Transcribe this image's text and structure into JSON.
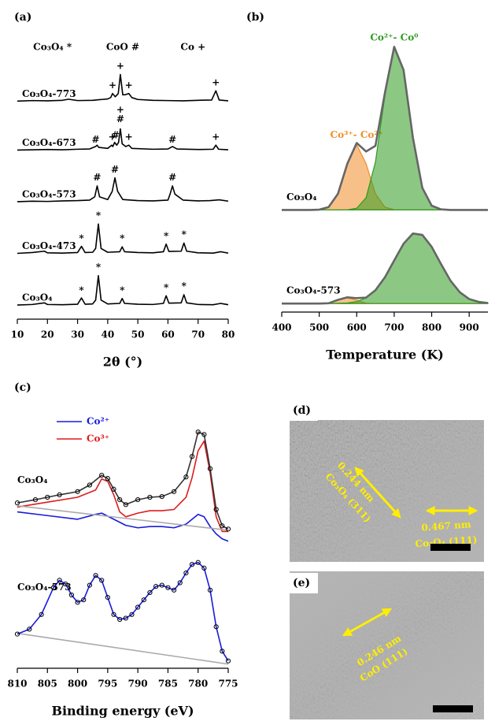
{
  "chart_data": [
    {
      "type": "line",
      "panel": "(a)",
      "xlabel": "2θ (°)",
      "xlim": [
        10,
        80
      ],
      "xticks": [
        10,
        20,
        30,
        40,
        50,
        60,
        70,
        80
      ],
      "ylim": [
        0,
        100
      ],
      "key": [
        "Co₃O₄  *",
        "CoO  #",
        "Co  +"
      ],
      "series": [
        {
          "name": "Co₃O₄-773",
          "color": "#000000",
          "x": [
            10,
            15,
            20,
            25,
            27,
            30,
            35,
            38,
            40,
            41,
            41.6,
            42.5,
            43.5,
            44.2,
            45,
            46,
            47,
            48,
            50,
            55,
            60,
            65,
            70,
            74.5,
            75.9,
            77,
            80
          ],
          "values": [
            80.2,
            80.4,
            80.3,
            80.5,
            80.9,
            80.4,
            80.5,
            80.8,
            81,
            81.5,
            83,
            81.8,
            83,
            90,
            82.5,
            82.6,
            83,
            81.5,
            80.8,
            80.5,
            80.4,
            80.3,
            80.5,
            80.6,
            84,
            80.6,
            80.3
          ]
        },
        {
          "name": "Co₃O₄-673",
          "color": "#000000",
          "x": [
            10,
            15,
            20,
            25,
            30,
            34,
            36,
            36.5,
            37,
            40,
            41.3,
            41.7,
            42.3,
            43,
            43.6,
            44.2,
            44.8,
            46,
            47,
            48,
            55,
            60,
            61.5,
            63,
            70,
            75,
            75.9,
            76.8,
            80
          ],
          "values": [
            62.2,
            62.3,
            62.4,
            62.3,
            62.5,
            62.6,
            63.5,
            64,
            63.2,
            62.8,
            64,
            63.5,
            65,
            64,
            65,
            70,
            64.5,
            63.5,
            64,
            62.8,
            62.5,
            62.6,
            63.5,
            62.6,
            62.4,
            62.5,
            64,
            62.5,
            62.3
          ]
        },
        {
          "name": "Co₃O₄-573",
          "color": "#000000",
          "x": [
            10,
            15,
            20,
            25,
            30,
            34,
            35.7,
            36.5,
            37.3,
            40,
            41.5,
            42.4,
            43.3,
            45,
            50,
            55,
            60,
            60.7,
            61.5,
            62.3,
            65,
            70,
            74,
            77,
            80
          ],
          "values": [
            43.2,
            43.4,
            43.3,
            43.5,
            43.6,
            43.8,
            45,
            49,
            45,
            44,
            47,
            52,
            47,
            44,
            43.6,
            43.5,
            43.8,
            46,
            49,
            46,
            43.8,
            43.5,
            43.6,
            43.9,
            43.4
          ]
        },
        {
          "name": "Co₃O₄-473",
          "color": "#000000",
          "x": [
            10,
            15,
            19,
            20,
            25,
            30,
            31.3,
            32.5,
            35,
            36,
            36.9,
            37.8,
            40,
            44,
            44.8,
            45.6,
            50,
            55,
            58.5,
            59.4,
            60.3,
            64.4,
            65.3,
            66.2,
            70,
            75,
            77.5,
            78.5,
            80
          ],
          "values": [
            24.2,
            24.5,
            25,
            24.4,
            24.3,
            24.5,
            26.8,
            24.5,
            24.6,
            26,
            35,
            26,
            24.6,
            24.8,
            26.6,
            24.8,
            24.5,
            24.4,
            24.8,
            27.6,
            24.9,
            25,
            28,
            25,
            24.4,
            24.3,
            24.8,
            24.6,
            24.3
          ]
        },
        {
          "name": "Co₃O₄",
          "color": "#000000",
          "x": [
            10,
            15,
            19,
            20,
            25,
            30,
            31.3,
            32.5,
            35,
            36,
            36.9,
            37.8,
            40,
            44,
            44.8,
            45.6,
            50,
            55,
            58.5,
            59.4,
            60.3,
            64.4,
            65.3,
            66.2,
            70,
            75,
            77.5,
            78.5,
            80
          ],
          "values": [
            5.2,
            5.4,
            6,
            5.4,
            5.3,
            5.5,
            7.8,
            5.5,
            5.6,
            7,
            16,
            7,
            5.6,
            5.8,
            7.6,
            5.8,
            5.5,
            5.4,
            5.8,
            8.6,
            5.9,
            6,
            9,
            6,
            5.4,
            5.3,
            5.8,
            5.6,
            5.3
          ]
        }
      ],
      "markers": [
        {
          "x": 41.6,
          "y": 86,
          "label": "+"
        },
        {
          "x": 44.2,
          "y": 93,
          "label": "+"
        },
        {
          "x": 47,
          "y": 86,
          "label": "+"
        },
        {
          "x": 75.9,
          "y": 87,
          "label": "+"
        },
        {
          "x": 36,
          "y": 66,
          "label": "#"
        },
        {
          "x": 41.5,
          "y": 67,
          "label": "+"
        },
        {
          "x": 42.6,
          "y": 67.5,
          "label": "#"
        },
        {
          "x": 44.2,
          "y": 73.5,
          "label": "#"
        },
        {
          "x": 44.2,
          "y": 77,
          "label": "+"
        },
        {
          "x": 47,
          "y": 67,
          "label": "+"
        },
        {
          "x": 61.5,
          "y": 66,
          "label": "#"
        },
        {
          "x": 75.9,
          "y": 67,
          "label": "+"
        },
        {
          "x": 36.5,
          "y": 52,
          "label": "#"
        },
        {
          "x": 42.4,
          "y": 55,
          "label": "#"
        },
        {
          "x": 61.5,
          "y": 52,
          "label": "#"
        },
        {
          "x": 31.3,
          "y": 29.5,
          "label": "*"
        },
        {
          "x": 36.9,
          "y": 38,
          "label": "*"
        },
        {
          "x": 44.8,
          "y": 29.5,
          "label": "*"
        },
        {
          "x": 59.4,
          "y": 30.5,
          "label": "*"
        },
        {
          "x": 65.3,
          "y": 31,
          "label": "*"
        },
        {
          "x": 31.3,
          "y": 10.5,
          "label": "*"
        },
        {
          "x": 36.9,
          "y": 19,
          "label": "*"
        },
        {
          "x": 44.8,
          "y": 10.5,
          "label": "*"
        },
        {
          "x": 59.4,
          "y": 11.5,
          "label": "*"
        },
        {
          "x": 65.3,
          "y": 12,
          "label": "*"
        }
      ]
    },
    {
      "type": "line",
      "panel": "(b)",
      "xlabel": "Temperature (K)",
      "xlim": [
        400,
        950
      ],
      "xticks": [
        400,
        500,
        600,
        700,
        800,
        900
      ],
      "ylim": [
        0,
        100
      ],
      "x": [
        400,
        425,
        450,
        475,
        500,
        525,
        550,
        575,
        600,
        625,
        650,
        675,
        700,
        725,
        750,
        775,
        800,
        825,
        850,
        875,
        900,
        925,
        950
      ],
      "series": [
        {
          "name": "Co³⁺- Co²⁺",
          "color": "#f28c28",
          "fill": true,
          "values": [
            36,
            36,
            36,
            36,
            36.1,
            37,
            41.7,
            52.3,
            59,
            52.3,
            41.7,
            37,
            36.1,
            36,
            36,
            36,
            36,
            36,
            36,
            36,
            36,
            36,
            36
          ]
        },
        {
          "name": "Co²⁺- Co⁰",
          "color": "#2e9a1e",
          "fill": true,
          "values": [
            36,
            36,
            36,
            36,
            36,
            36,
            36,
            36,
            36.6,
            40.3,
            52.9,
            76.1,
            93.4,
            85.3,
            61.4,
            43.8,
            37.5,
            36.2,
            36,
            36,
            36,
            36,
            36
          ]
        },
        {
          "name": "Co₃O₄",
          "color": "#666666",
          "values": [
            36,
            36,
            36,
            36,
            36.1,
            37,
            41.7,
            52.3,
            59.6,
            56.6,
            58.6,
            77.1,
            93.5,
            85.3,
            61.4,
            43.8,
            37.5,
            36.2,
            36,
            36,
            36,
            36,
            36
          ]
        },
        {
          "color": "#f28c28",
          "fill": true,
          "values": [
            3,
            3,
            3,
            3,
            3,
            3.1,
            4.2,
            5,
            4.2,
            3.1,
            3,
            3,
            3,
            3,
            3,
            3,
            3,
            3,
            3,
            3,
            3,
            3,
            3
          ]
        },
        {
          "color": "#2e9a1e",
          "fill": true,
          "values": [
            3,
            3,
            3,
            3,
            3,
            3,
            3.1,
            3.2,
            3.7,
            5,
            7.7,
            12.2,
            18.2,
            24.1,
            27.7,
            27.2,
            23,
            16.9,
            11.1,
            7,
            4.6,
            3.6,
            3.2
          ]
        },
        {
          "name": "Co₃O₄-573",
          "color": "#666666",
          "values": [
            3,
            3,
            3,
            3,
            3,
            3.1,
            4.3,
            5.2,
            4.9,
            5.1,
            7.7,
            12.2,
            18.2,
            24.1,
            27.7,
            27.2,
            23,
            16.9,
            11.1,
            7,
            4.6,
            3.6,
            3.2
          ]
        }
      ]
    },
    {
      "type": "line",
      "panel": "(c)",
      "xlabel": "Binding energy (eV)",
      "xlim": [
        810,
        775
      ],
      "xticks": [
        810,
        805,
        800,
        795,
        790,
        785,
        780,
        775
      ],
      "ylim": [
        0,
        100
      ],
      "legend": true,
      "annotations": [
        {
          "text": "Co₃O₄",
          "x": 810,
          "y": 77
        },
        {
          "text": "Co₃O₄-573",
          "x": 810,
          "y": 33
        }
      ],
      "series": [
        {
          "name": "Co²⁺",
          "color": "#1a1adb",
          "x": [
            810,
            805,
            800,
            797,
            796,
            794,
            792,
            790,
            788,
            786,
            784,
            782,
            780,
            779,
            778,
            777,
            776,
            775
          ],
          "values": [
            64,
            62.5,
            61,
            63,
            63.5,
            61,
            58.5,
            57.5,
            58,
            58,
            57.5,
            59,
            63,
            62,
            58,
            55,
            53,
            52
          ]
        },
        {
          "name": "Co³⁺",
          "color": "#dd1c1c",
          "x": [
            810,
            805,
            800,
            797,
            796,
            795,
            794,
            793,
            792,
            790,
            788,
            786,
            784,
            782,
            781,
            780,
            779,
            778,
            777,
            776,
            775
          ],
          "values": [
            66,
            68,
            70,
            73,
            77.5,
            76.5,
            71,
            64,
            62,
            63.5,
            64.5,
            64.5,
            65,
            70,
            78,
            89,
            93,
            80,
            62,
            56,
            56
          ]
        },
        {
          "color": "#aaaaaa",
          "x": [
            810,
            775
          ],
          "values": [
            66.5,
            56.5
          ]
        },
        {
          "color": "#000000",
          "marker": "circle",
          "line_color": "#333333",
          "x": [
            810,
            807,
            805,
            803,
            800,
            798,
            796,
            795,
            794,
            793,
            792,
            790,
            788,
            786,
            784,
            782,
            781,
            780,
            779,
            778,
            777,
            776,
            775
          ],
          "values": [
            67.7,
            69,
            70,
            71,
            72.3,
            75,
            79,
            77.7,
            73.3,
            69,
            67,
            69,
            70,
            70.3,
            72.3,
            78.3,
            86.7,
            96.7,
            95.7,
            81.7,
            65,
            58.3,
            57
          ]
        },
        {
          "color": "#aaaaaa",
          "x": [
            810,
            775
          ],
          "values": [
            14.3,
            1.7
          ]
        },
        {
          "color": "#000000",
          "marker": "circle",
          "line_color": "#1a1adb",
          "x": [
            810,
            808,
            806,
            804,
            803,
            802,
            801,
            800,
            799,
            798,
            797,
            796,
            795,
            794,
            793,
            792,
            791,
            790,
            789,
            788,
            787,
            786,
            785,
            784,
            783,
            782,
            781,
            780,
            779,
            778,
            777,
            776,
            775
          ],
          "values": [
            14,
            16,
            22,
            33,
            36,
            34.5,
            30,
            27,
            28,
            34,
            38,
            36,
            29,
            22,
            20,
            20.5,
            22,
            25,
            28,
            31,
            33.5,
            34,
            33,
            32,
            35,
            39,
            42.5,
            43.3,
            41,
            32,
            17,
            7,
            3
          ]
        }
      ]
    }
  ],
  "images": [
    {
      "label": "(d)",
      "annotations": [
        "0.244 nm",
        "Co₃O₄ (311)",
        "0.467 nm",
        "Co₃O₄ (111)"
      ]
    },
    {
      "label": "(e)",
      "annotations": [
        "0.246 nm",
        "CoO (111)"
      ]
    }
  ]
}
